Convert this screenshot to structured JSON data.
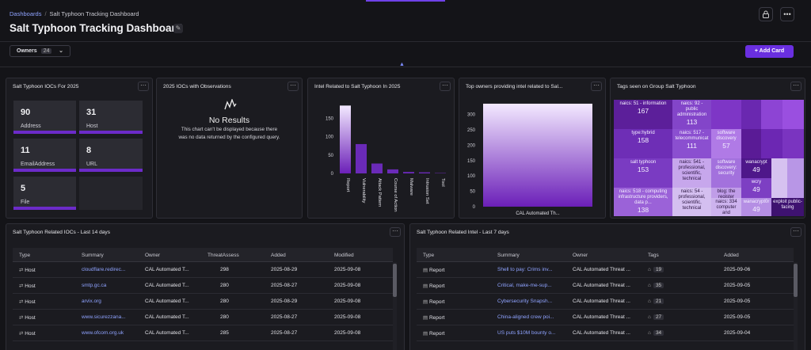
{
  "breadcrumb": {
    "root": "Dashboards",
    "sep": "/",
    "current": "Salt Typhoon Tracking Dashboard"
  },
  "title": "Salt Typhoon Tracking Dashboard",
  "owners": {
    "label": "Owners",
    "count": "24"
  },
  "add_card": "Add Card",
  "icons": {
    "lock": "lock-icon",
    "more": "more-icon",
    "edit": "pencil-icon",
    "plus": "plus-icon"
  },
  "colors": {
    "accent": "#6a2fe0",
    "link": "#8fa3ff",
    "bar": "#6c2bc9"
  },
  "iocs_card": {
    "title": "Salt Typhoon IOCs For 2025",
    "tiles": [
      {
        "value": "90",
        "label": "Address"
      },
      {
        "value": "31",
        "label": "Host"
      },
      {
        "value": "11",
        "label": "EmailAddress"
      },
      {
        "value": "8",
        "label": "URL"
      },
      {
        "value": "5",
        "label": "File"
      }
    ]
  },
  "obs_card": {
    "title": "2025 IOCs with Observations",
    "no_results": "No Results",
    "message": "This chart can't be displayed because there was no data returned by the configured query."
  },
  "intel_card": {
    "title": "Intel Related to Salt Typhoon In 2025"
  },
  "owners_card": {
    "title": "Top owners providing intel related to Sal..."
  },
  "tags_card": {
    "title": "Tags seen on Group Salt Typhoon"
  },
  "chart_data": [
    {
      "type": "bar",
      "categories": [
        "Report",
        "Vulnerability",
        "Attack Pattern",
        "Course of Action",
        "Malware",
        "Intrusion Set",
        "Tool"
      ],
      "values": [
        185,
        80,
        27,
        11,
        4,
        3,
        1
      ],
      "ylim": [
        0,
        190
      ],
      "yticks": [
        0,
        50,
        100,
        150
      ],
      "grid": false
    },
    {
      "type": "bar",
      "categories": [
        "CAL Automated Th..."
      ],
      "values": [
        335
      ],
      "ylim": [
        0,
        340
      ],
      "yticks": [
        0,
        50,
        100,
        150,
        200,
        250,
        300
      ],
      "grid": false
    },
    {
      "type": "heatmap",
      "cells": [
        {
          "label": "naics: 51 - information",
          "value": "167"
        },
        {
          "label": "naics: 92 - public administration",
          "value": "113"
        },
        {
          "label": "type:hybrid",
          "value": "158"
        },
        {
          "label": "naics: 517 - telecommunicat",
          "value": "111"
        },
        {
          "label": "software discovery",
          "value": "57"
        },
        {
          "label": "salt typhoon",
          "value": "153"
        },
        {
          "label": "naics: 541 - professional, scientific, technical",
          "value": ""
        },
        {
          "label": "software discovery: security",
          "value": ""
        },
        {
          "label": "wanacrypt",
          "value": "49"
        },
        {
          "label": "naics: 518 - computing infrastructure providers, data p...",
          "value": "138"
        },
        {
          "label": "naics: 54 - professional, scientific, technical",
          "value": ""
        },
        {
          "label": "blog: the register",
          "value": ""
        },
        {
          "label": "wcry",
          "value": "49"
        },
        {
          "label": "naics: 334 computer and",
          "value": ""
        },
        {
          "label": "wanacrypt0r",
          "value": "49"
        },
        {
          "label": "exploit public-facing",
          "value": ""
        }
      ]
    }
  ],
  "iocs_table": {
    "title": "Salt Typhoon Related IOCs - Last 14 days",
    "headers": [
      "Type",
      "Summary",
      "Owner",
      "ThreatAssess",
      "Added",
      "Modified"
    ],
    "rows": [
      {
        "type": "Host",
        "summary": "cloudflare.redirec...",
        "owner": "CAL Automated T...",
        "ta": "298",
        "added": "2025-08-29",
        "modified": "2025-09-08"
      },
      {
        "type": "Host",
        "summary": "smtp.gc.ca",
        "owner": "CAL Automated T...",
        "ta": "280",
        "added": "2025-08-27",
        "modified": "2025-09-08"
      },
      {
        "type": "Host",
        "summary": "arvix.org",
        "owner": "CAL Automated T...",
        "ta": "280",
        "added": "2025-08-29",
        "modified": "2025-09-08"
      },
      {
        "type": "Host",
        "summary": "www.sicurezzana...",
        "owner": "CAL Automated T...",
        "ta": "280",
        "added": "2025-08-27",
        "modified": "2025-09-08"
      },
      {
        "type": "Host",
        "summary": "www.ofcom.org.uk",
        "owner": "CAL Automated T...",
        "ta": "285",
        "added": "2025-08-27",
        "modified": "2025-09-08"
      }
    ]
  },
  "intel_table": {
    "title": "Salt Typhoon Related Intel - Last 7 days",
    "headers": [
      "Type",
      "Summary",
      "Owner",
      "Tags",
      "Added"
    ],
    "rows": [
      {
        "type": "Report",
        "summary": "Shell to pay: Crims inv...",
        "owner": "CAL Automated Threat ...",
        "tags": "19",
        "added": "2025-09-06"
      },
      {
        "type": "Report",
        "summary": "Critical, make-me-sup...",
        "owner": "CAL Automated Threat ...",
        "tags": "35",
        "added": "2025-09-05"
      },
      {
        "type": "Report",
        "summary": "Cybersecurity Snapsh...",
        "owner": "CAL Automated Threat ...",
        "tags": "21",
        "added": "2025-09-05"
      },
      {
        "type": "Report",
        "summary": "China-aligned crew poi...",
        "owner": "CAL Automated Threat ...",
        "tags": "27",
        "added": "2025-09-05"
      },
      {
        "type": "Report",
        "summary": "US puts $10M bounty o...",
        "owner": "CAL Automated Threat ...",
        "tags": "34",
        "added": "2025-09-04"
      }
    ]
  }
}
